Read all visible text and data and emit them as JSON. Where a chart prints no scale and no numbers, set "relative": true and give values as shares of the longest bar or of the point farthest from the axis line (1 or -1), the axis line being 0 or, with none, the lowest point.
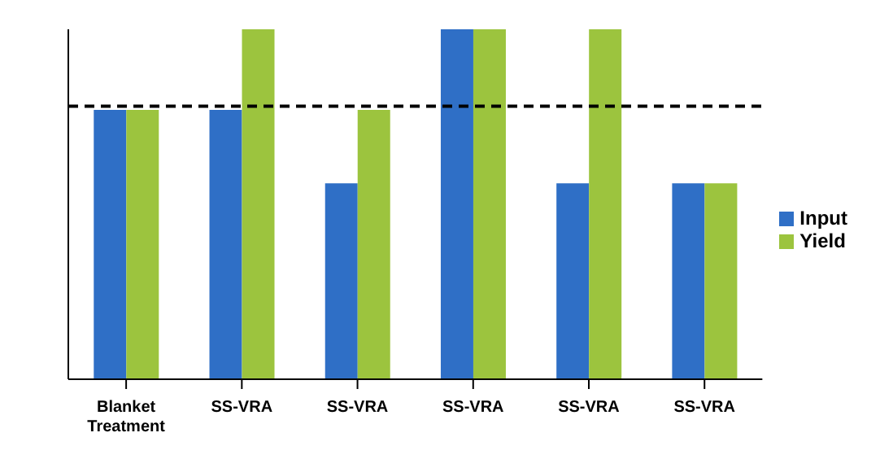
{
  "chart_data": {
    "type": "bar",
    "relative": true,
    "categories": [
      "Blanket Treatment",
      "SS-VRA",
      "SS-VRA",
      "SS-VRA",
      "SS-VRA",
      "SS-VRA"
    ],
    "series": [
      {
        "name": "Input",
        "color": "#2f6fc6",
        "values": [
          0.77,
          0.77,
          0.56,
          1,
          0.56,
          0.56
        ]
      },
      {
        "name": "Yield",
        "color": "#9cc43e",
        "values": [
          0.77,
          1,
          0.77,
          1,
          1,
          0.56
        ]
      }
    ],
    "ref_lines": [
      {
        "axis": "y",
        "value": 0.78,
        "color": "#000000",
        "line_style": "dashed"
      }
    ],
    "legend": "right"
  }
}
